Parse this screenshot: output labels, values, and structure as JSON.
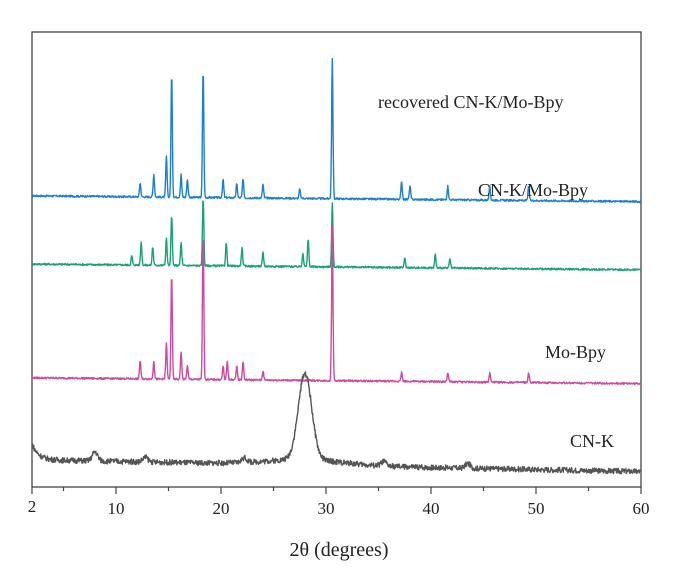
{
  "chart_data": {
    "type": "line",
    "xlabel": "2θ (degrees)",
    "ylabel": "",
    "xlim": [
      2,
      60
    ],
    "x_tick_labels": [
      "2",
      "10",
      "20",
      "30",
      "40",
      "50",
      "60"
    ],
    "x_ticks": [
      2,
      10,
      20,
      30,
      40,
      50,
      60
    ],
    "grid": false,
    "legend": "none (labels placed next to each trace)",
    "y_scale": "stacked arbitrary intensity, no y ticks",
    "series": [
      {
        "name": "recovered CN-K/Mo-Bpy",
        "color": "#1f7fcf",
        "baseline": 0.64,
        "peaks": [
          [
            12.3,
            0.03
          ],
          [
            13.6,
            0.05
          ],
          [
            14.8,
            0.09
          ],
          [
            15.3,
            0.27
          ],
          [
            16.2,
            0.05
          ],
          [
            16.8,
            0.04
          ],
          [
            18.3,
            0.28
          ],
          [
            20.2,
            0.04
          ],
          [
            21.5,
            0.03
          ],
          [
            22.1,
            0.04
          ],
          [
            24.0,
            0.03
          ],
          [
            27.5,
            0.02
          ],
          [
            30.6,
            0.31
          ],
          [
            37.2,
            0.04
          ],
          [
            38.0,
            0.03
          ],
          [
            41.6,
            0.03
          ],
          [
            45.6,
            0.03
          ],
          [
            49.3,
            0.03
          ]
        ]
      },
      {
        "name": "CN-K/Mo-Bpy",
        "color": "#1aa271",
        "baseline": 0.49,
        "peaks": [
          [
            11.5,
            0.02
          ],
          [
            12.4,
            0.05
          ],
          [
            13.5,
            0.04
          ],
          [
            14.8,
            0.06
          ],
          [
            15.3,
            0.11
          ],
          [
            16.2,
            0.05
          ],
          [
            18.3,
            0.15
          ],
          [
            20.5,
            0.05
          ],
          [
            22.0,
            0.04
          ],
          [
            24.0,
            0.03
          ],
          [
            27.8,
            0.03
          ],
          [
            28.3,
            0.06
          ],
          [
            30.6,
            0.14
          ],
          [
            37.5,
            0.02
          ],
          [
            40.4,
            0.03
          ],
          [
            41.8,
            0.02
          ]
        ]
      },
      {
        "name": "Mo-Bpy",
        "color": "#cc4a9f",
        "baseline": 0.24,
        "peaks": [
          [
            12.3,
            0.04
          ],
          [
            13.6,
            0.04
          ],
          [
            14.8,
            0.08
          ],
          [
            15.3,
            0.23
          ],
          [
            16.2,
            0.06
          ],
          [
            16.8,
            0.03
          ],
          [
            18.3,
            0.32
          ],
          [
            20.2,
            0.03
          ],
          [
            20.6,
            0.04
          ],
          [
            21.5,
            0.03
          ],
          [
            22.1,
            0.04
          ],
          [
            24.0,
            0.02
          ],
          [
            30.6,
            0.34
          ],
          [
            37.2,
            0.02
          ],
          [
            41.6,
            0.02
          ],
          [
            45.6,
            0.02
          ],
          [
            49.3,
            0.02
          ]
        ]
      },
      {
        "name": "CN-K",
        "color": "#555555",
        "baseline": 0.06,
        "broad_peak": [
          28.0,
          0.19
        ],
        "peaks": [
          [
            8.0,
            0.02
          ],
          [
            12.8,
            0.01
          ],
          [
            22.2,
            0.01
          ],
          [
            35.5,
            0.01
          ],
          [
            43.5,
            0.01
          ]
        ]
      }
    ]
  }
}
